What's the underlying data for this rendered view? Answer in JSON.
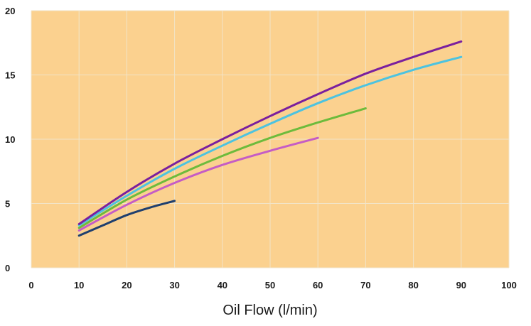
{
  "chart_data": {
    "type": "line",
    "title": "",
    "xlabel": "Oil Flow (l/min)",
    "ylabel": "",
    "xlim": [
      0,
      100
    ],
    "ylim": [
      0,
      20
    ],
    "x_ticks": [
      0,
      10,
      20,
      30,
      40,
      50,
      60,
      70,
      80,
      90,
      100
    ],
    "y_ticks": [
      0,
      5,
      10,
      15,
      20
    ],
    "x_tick_labels": [
      "0",
      "10",
      "20",
      "30",
      "40",
      "50",
      "60",
      "70",
      "80",
      "90",
      "100"
    ],
    "y_tick_labels": [
      "0",
      "5",
      "10",
      "15",
      "20"
    ],
    "grid": true,
    "legend": "none",
    "background_color": "#fbd18f",
    "grid_color": "#f2e4c8",
    "series": [
      {
        "color": "#1f3f6e",
        "x": [
          10,
          15,
          20,
          25,
          30
        ],
        "y": [
          2.5,
          3.3,
          4.1,
          4.7,
          5.2
        ]
      },
      {
        "color": "#c55cc5",
        "x": [
          10,
          20,
          30,
          40,
          50,
          60
        ],
        "y": [
          2.9,
          4.9,
          6.6,
          8.0,
          9.1,
          10.1
        ]
      },
      {
        "color": "#6dbb3c",
        "x": [
          10,
          20,
          30,
          40,
          50,
          60,
          70
        ],
        "y": [
          3.1,
          5.3,
          7.1,
          8.7,
          10.1,
          11.3,
          12.4
        ]
      },
      {
        "color": "#4cc3e0",
        "x": [
          10,
          20,
          30,
          40,
          50,
          60,
          70,
          80,
          90
        ],
        "y": [
          3.3,
          5.6,
          7.7,
          9.5,
          11.2,
          12.8,
          14.2,
          15.4,
          16.4
        ]
      },
      {
        "color": "#7a1f9e",
        "x": [
          10,
          20,
          30,
          40,
          50,
          60,
          70,
          80,
          90
        ],
        "y": [
          3.4,
          5.9,
          8.1,
          10.0,
          11.8,
          13.5,
          15.1,
          16.4,
          17.6
        ]
      }
    ]
  }
}
